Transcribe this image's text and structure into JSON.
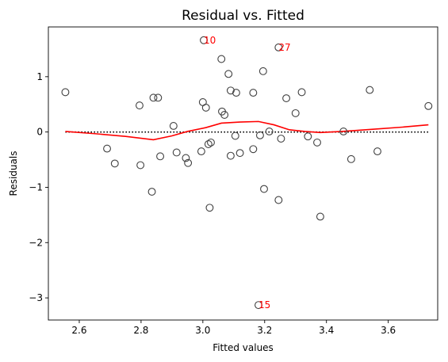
{
  "chart_data": {
    "type": "scatter",
    "title": "Residual vs. Fitted",
    "xlabel": "Fitted values",
    "ylabel": "Residuals",
    "xlim": [
      2.5,
      3.76
    ],
    "ylim": [
      -3.4,
      1.9
    ],
    "xticks": [
      2.6,
      2.8,
      3.0,
      3.2,
      3.4,
      3.6
    ],
    "xtick_labels": [
      "2.6",
      "2.8",
      "3.0",
      "3.2",
      "3.4",
      "3.6"
    ],
    "yticks": [
      -3,
      -2,
      -1,
      0,
      1
    ],
    "ytick_labels": [
      "−3",
      "−2",
      "−1",
      "0",
      "1"
    ],
    "grid": false,
    "reference_line_y": 0,
    "colors": {
      "points": "#404040",
      "smooth": "#ff0000",
      "annotation": "#ff0000",
      "reference": "#000000"
    },
    "points": [
      {
        "x": 2.555,
        "y": 0.72
      },
      {
        "x": 2.69,
        "y": -0.3
      },
      {
        "x": 2.715,
        "y": -0.57
      },
      {
        "x": 2.795,
        "y": 0.48
      },
      {
        "x": 2.798,
        "y": -0.6
      },
      {
        "x": 2.835,
        "y": -1.08
      },
      {
        "x": 2.84,
        "y": 0.62
      },
      {
        "x": 2.855,
        "y": 0.62
      },
      {
        "x": 2.862,
        "y": -0.44
      },
      {
        "x": 2.905,
        "y": 0.11
      },
      {
        "x": 2.915,
        "y": -0.37
      },
      {
        "x": 2.945,
        "y": -0.47
      },
      {
        "x": 2.952,
        "y": -0.56
      },
      {
        "x": 2.995,
        "y": -0.35
      },
      {
        "x": 3.0,
        "y": 0.54
      },
      {
        "x": 3.003,
        "y": 1.66
      },
      {
        "x": 3.01,
        "y": 0.44
      },
      {
        "x": 3.018,
        "y": -0.22
      },
      {
        "x": 3.022,
        "y": -1.37
      },
      {
        "x": 3.026,
        "y": -0.19
      },
      {
        "x": 3.06,
        "y": 1.32
      },
      {
        "x": 3.062,
        "y": 0.37
      },
      {
        "x": 3.07,
        "y": 0.31
      },
      {
        "x": 3.083,
        "y": 1.05
      },
      {
        "x": 3.09,
        "y": 0.75
      },
      {
        "x": 3.09,
        "y": -0.43
      },
      {
        "x": 3.105,
        "y": -0.07
      },
      {
        "x": 3.108,
        "y": 0.71
      },
      {
        "x": 3.12,
        "y": -0.38
      },
      {
        "x": 3.163,
        "y": 0.71
      },
      {
        "x": 3.163,
        "y": -0.31
      },
      {
        "x": 3.18,
        "y": -3.13
      },
      {
        "x": 3.185,
        "y": -0.06
      },
      {
        "x": 3.195,
        "y": 1.1
      },
      {
        "x": 3.198,
        "y": -1.03
      },
      {
        "x": 3.215,
        "y": 0.01
      },
      {
        "x": 3.245,
        "y": 1.53
      },
      {
        "x": 3.245,
        "y": -1.23
      },
      {
        "x": 3.253,
        "y": -0.12
      },
      {
        "x": 3.27,
        "y": 0.61
      },
      {
        "x": 3.3,
        "y": 0.34
      },
      {
        "x": 3.32,
        "y": 0.72
      },
      {
        "x": 3.34,
        "y": -0.08
      },
      {
        "x": 3.37,
        "y": -0.19
      },
      {
        "x": 3.38,
        "y": -1.53
      },
      {
        "x": 3.455,
        "y": 0.01
      },
      {
        "x": 3.48,
        "y": -0.49
      },
      {
        "x": 3.54,
        "y": 0.76
      },
      {
        "x": 3.565,
        "y": -0.35
      },
      {
        "x": 3.73,
        "y": 0.47
      }
    ],
    "smooth_line": [
      {
        "x": 2.555,
        "y": 0.01
      },
      {
        "x": 2.65,
        "y": -0.03
      },
      {
        "x": 2.75,
        "y": -0.08
      },
      {
        "x": 2.84,
        "y": -0.14
      },
      {
        "x": 2.9,
        "y": -0.07
      },
      {
        "x": 2.95,
        "y": 0.01
      },
      {
        "x": 3.01,
        "y": 0.08
      },
      {
        "x": 3.06,
        "y": 0.16
      },
      {
        "x": 3.12,
        "y": 0.18
      },
      {
        "x": 3.18,
        "y": 0.19
      },
      {
        "x": 3.23,
        "y": 0.13
      },
      {
        "x": 3.28,
        "y": 0.04
      },
      {
        "x": 3.33,
        "y": 0.01
      },
      {
        "x": 3.38,
        "y": -0.01
      },
      {
        "x": 3.45,
        "y": 0.01
      },
      {
        "x": 3.55,
        "y": 0.05
      },
      {
        "x": 3.65,
        "y": 0.09
      },
      {
        "x": 3.73,
        "y": 0.13
      }
    ],
    "annotations": [
      {
        "label": "10",
        "x": 3.003,
        "y": 1.66
      },
      {
        "label": "27",
        "x": 3.245,
        "y": 1.53
      },
      {
        "label": "15",
        "x": 3.18,
        "y": -3.13
      }
    ]
  }
}
